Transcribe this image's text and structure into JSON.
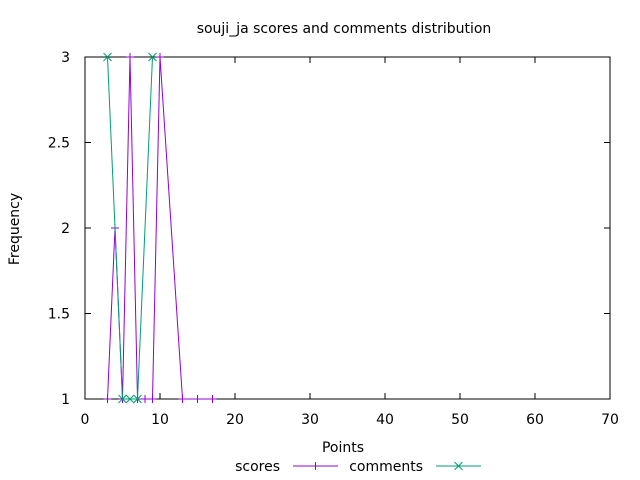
{
  "chart_data": {
    "type": "line",
    "title": "souji_ja scores and comments distribution",
    "xlabel": "Points",
    "ylabel": "Frequency",
    "xlim": [
      0,
      70
    ],
    "ylim": [
      1,
      3
    ],
    "xticks": [
      0,
      10,
      20,
      30,
      40,
      50,
      60,
      70
    ],
    "yticks": [
      1,
      1.5,
      2,
      2.5,
      3
    ],
    "grid": false,
    "legend_position": "bottom",
    "series": [
      {
        "name": "scores",
        "color": "#9400d3",
        "marker": "plus",
        "points": [
          [
            3,
            1
          ],
          [
            4,
            2
          ],
          [
            5,
            1
          ],
          [
            6,
            3
          ],
          [
            7,
            1
          ],
          [
            8,
            1
          ],
          [
            9,
            1
          ],
          [
            10,
            3
          ],
          [
            13,
            1
          ],
          [
            15,
            1
          ],
          [
            17,
            1
          ]
        ]
      },
      {
        "name": "comments",
        "color": "#009e73",
        "marker": "x",
        "points": [
          [
            3,
            3
          ],
          [
            5,
            1
          ],
          [
            6,
            1
          ],
          [
            7,
            1
          ],
          [
            9,
            3
          ]
        ]
      }
    ]
  }
}
